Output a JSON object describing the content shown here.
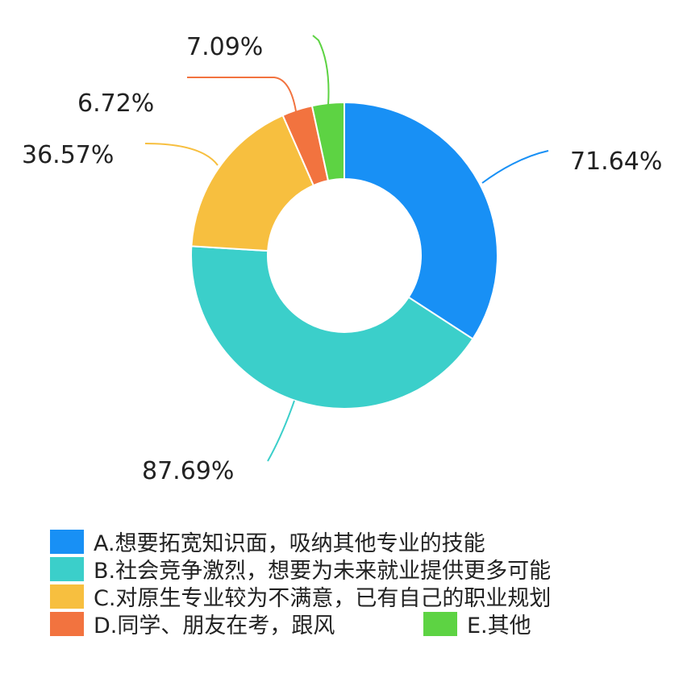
{
  "chart_data": {
    "type": "pie",
    "donut": true,
    "labels": [
      "A.想要拓宽知识面，吸纳其他专业的技能",
      "B.社会竞争激烈，想要为未来就业提供更多可能",
      "C.对原生专业较为不满意，已有自己的职业规划",
      "D.同学、朋友在考，跟风",
      "E.其他"
    ],
    "values": [
      71.64,
      87.69,
      36.57,
      6.72,
      7.09
    ],
    "value_labels": [
      "71.64%",
      "87.69%",
      "36.57%",
      "6.72%",
      "7.09%"
    ],
    "colors": [
      "#1890F5",
      "#3BCFCA",
      "#F7BF3F",
      "#F2733F",
      "#5DD343"
    ],
    "legend_position": "bottom"
  }
}
